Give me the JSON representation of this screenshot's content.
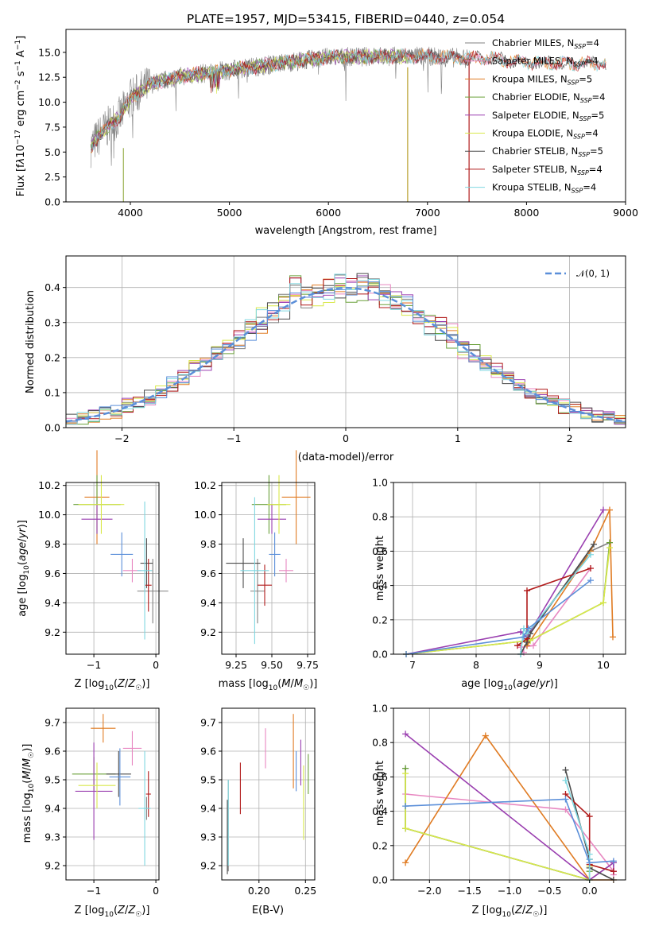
{
  "figure": {
    "title": "PLATE=1957, MJD=53415, FIBERID=0440, z=0.054",
    "colors": {
      "Chabrier MILES": "#808080",
      "Salpeter MILES": "#e887c1",
      "Kroupa MILES": "#e07b22",
      "Chabrier ELODIE": "#6aa039",
      "Salpeter ELODIE": "#9a3fb0",
      "Kroupa ELODIE": "#d8e84a",
      "Chabrier STELIB": "#4a4a4a",
      "Salpeter STELIB": "#b11b1b",
      "Kroupa STELIB": "#7fd7e0",
      "Normal": "#5b8fd9"
    }
  },
  "chart_data": [
    {
      "id": "spectrum",
      "type": "line",
      "xlabel": "wavelength [Angstrom, rest frame]",
      "ylabel": "Flux [f_λ 10^-17 erg cm^-2 s^-1 A^-1]",
      "xlim": [
        3350,
        9000
      ],
      "ylim": [
        0,
        17.3
      ],
      "xticks": [
        "4000",
        "5000",
        "6000",
        "7000",
        "8000",
        "9000"
      ],
      "yticks": [
        "0.0",
        "2.5",
        "5.0",
        "7.5",
        "10.0",
        "12.5",
        "15.0"
      ],
      "legend_loc": "upper right",
      "legend": [
        {
          "name": "Chabrier MILES",
          "nssp": "4"
        },
        {
          "name": "Salpeter MILES",
          "nssp": "4"
        },
        {
          "name": "Kroupa MILES",
          "nssp": "5"
        },
        {
          "name": "Chabrier ELODIE",
          "nssp": "4"
        },
        {
          "name": "Salpeter ELODIE",
          "nssp": "5"
        },
        {
          "name": "Kroupa ELODIE",
          "nssp": "4"
        },
        {
          "name": "Chabrier STELIB",
          "nssp": "5"
        },
        {
          "name": "Salpeter STELIB",
          "nssp": "4"
        },
        {
          "name": "Kroupa STELIB",
          "nssp": "4"
        }
      ],
      "continuum": [
        [
          3600,
          5.5
        ],
        [
          3700,
          6.8
        ],
        [
          3800,
          7.8
        ],
        [
          3900,
          8.6
        ],
        [
          4000,
          10.4
        ],
        [
          4200,
          11.8
        ],
        [
          4500,
          12.6
        ],
        [
          5000,
          13.2
        ],
        [
          5500,
          13.9
        ],
        [
          6000,
          14.5
        ],
        [
          6500,
          14.6
        ],
        [
          7000,
          14.6
        ],
        [
          7400,
          14.4
        ],
        [
          7600,
          14.4
        ],
        [
          8000,
          14.0
        ],
        [
          8500,
          13.9
        ],
        [
          8800,
          13.9
        ]
      ],
      "data_range": [
        3600,
        7420
      ],
      "model_range": [
        3600,
        8800
      ]
    },
    {
      "id": "residual_hist",
      "type": "line",
      "xlabel": "(data-model)/error",
      "ylabel": "Normed distribution",
      "xlim": [
        -2.5,
        2.5
      ],
      "ylim": [
        0,
        0.49
      ],
      "xticks": [
        "-2",
        "-1",
        "0",
        "1",
        "2"
      ],
      "yticks": [
        "0.0",
        "0.1",
        "0.2",
        "0.3",
        "0.4"
      ],
      "legend_loc": "upper right",
      "normal_label": "𝒩(0, 1)",
      "normal": {
        "mu": 0,
        "sigma": 1
      },
      "bin_width": 0.1,
      "grid": true
    },
    {
      "id": "age_vs_Z",
      "type": "scatter",
      "xlabel": "Z [log10(Z/Z☉)]",
      "ylabel": "age [log10(age/yr)]",
      "xlim": [
        -1.45,
        0.05
      ],
      "ylim": [
        9.05,
        10.22
      ],
      "xticks": [
        -1,
        0
      ],
      "yticks": [
        "9.2",
        "9.4",
        "9.6",
        "9.8",
        "10.0",
        "10.2"
      ],
      "grid": true,
      "points": [
        {
          "series": "Chabrier MILES",
          "x": -0.05,
          "xerr": 0.25,
          "y": 9.48,
          "yerr": 0.22
        },
        {
          "series": "Salpeter MILES",
          "x": -0.38,
          "xerr": 0.15,
          "y": 9.62,
          "yerr": 0.08
        },
        {
          "series": "Kroupa MILES",
          "x": -0.95,
          "xerr": 0.2,
          "y": 10.12,
          "yerr": 0.32
        },
        {
          "series": "Chabrier ELODIE",
          "x": -0.95,
          "xerr": 0.38,
          "y": 10.07,
          "yerr": 0.2
        },
        {
          "series": "Salpeter ELODIE",
          "x": -0.95,
          "xerr": 0.25,
          "y": 9.97,
          "yerr": 0.1
        },
        {
          "series": "Kroupa ELODIE",
          "x": -0.88,
          "xerr": 0.37,
          "y": 10.07,
          "yerr": 0.2
        },
        {
          "series": "Chabrier STELIB",
          "x": -0.15,
          "xerr": 0.1,
          "y": 9.67,
          "yerr": 0.17
        },
        {
          "series": "Salpeter STELIB",
          "x": -0.12,
          "xerr": 0.05,
          "y": 9.52,
          "yerr": 0.18
        },
        {
          "series": "Kroupa STELIB",
          "x": -0.18,
          "xerr": 0.12,
          "y": 9.62,
          "yerr": 0.47
        },
        {
          "series": "Normal",
          "x": -0.55,
          "xerr": 0.18,
          "y": 9.73,
          "yerr": 0.15
        }
      ]
    },
    {
      "id": "age_vs_mass",
      "type": "scatter",
      "xlabel": "mass [log10(M/M☉)]",
      "ylabel": "",
      "xlim": [
        9.15,
        9.8
      ],
      "ylim": [
        9.05,
        10.22
      ],
      "xticks": [
        "9.25",
        "9.50",
        "9.75"
      ],
      "yticks": [
        "9.2",
        "9.4",
        "9.6",
        "9.8",
        "10.0",
        "10.2"
      ],
      "grid": true,
      "points": [
        {
          "series": "Chabrier MILES",
          "x": 9.4,
          "xerr": 0.05,
          "y": 9.48,
          "yerr": 0.22
        },
        {
          "series": "Salpeter MILES",
          "x": 9.6,
          "xerr": 0.05,
          "y": 9.62,
          "yerr": 0.08
        },
        {
          "series": "Kroupa MILES",
          "x": 9.67,
          "xerr": 0.1,
          "y": 10.12,
          "yerr": 0.32
        },
        {
          "series": "Chabrier ELODIE",
          "x": 9.48,
          "xerr": 0.12,
          "y": 10.07,
          "yerr": 0.2
        },
        {
          "series": "Salpeter ELODIE",
          "x": 9.5,
          "xerr": 0.1,
          "y": 9.97,
          "yerr": 0.1
        },
        {
          "series": "Kroupa ELODIE",
          "x": 9.55,
          "xerr": 0.08,
          "y": 10.07,
          "yerr": 0.2
        },
        {
          "series": "Chabrier STELIB",
          "x": 9.3,
          "xerr": 0.12,
          "y": 9.67,
          "yerr": 0.17
        },
        {
          "series": "Salpeter STELIB",
          "x": 9.45,
          "xerr": 0.05,
          "y": 9.52,
          "yerr": 0.14
        },
        {
          "series": "Kroupa STELIB",
          "x": 9.38,
          "xerr": 0.1,
          "y": 9.62,
          "yerr": 0.5
        },
        {
          "series": "Normal",
          "x": 9.52,
          "xerr": 0.04,
          "y": 9.73,
          "yerr": 0.15
        }
      ]
    },
    {
      "id": "weight_vs_age",
      "type": "line",
      "xlabel": "age [log10(age/yr)]",
      "ylabel": "mass weight",
      "xlim": [
        6.7,
        10.35
      ],
      "ylim": [
        0,
        1
      ],
      "xticks": [
        "7",
        "8",
        "9",
        "10"
      ],
      "yticks": [
        "0.0",
        "0.2",
        "0.4",
        "0.6",
        "0.8",
        "1.0"
      ],
      "grid": true,
      "series": [
        {
          "name": "Chabrier MILES",
          "points": [
            [
              8.8,
              0.05
            ],
            [
              8.82,
              0.12
            ],
            [
              9.8,
              0.6
            ],
            [
              10.1,
              0.65
            ]
          ]
        },
        {
          "name": "Salpeter MILES",
          "points": [
            [
              8.75,
              0.01
            ],
            [
              8.7,
              0.04
            ],
            [
              8.9,
              0.05
            ],
            [
              9.8,
              0.5
            ]
          ]
        },
        {
          "name": "Kroupa MILES",
          "points": [
            [
              8.8,
              0.05
            ],
            [
              9.8,
              0.6
            ],
            [
              10.1,
              0.84
            ],
            [
              10.15,
              0.1
            ]
          ]
        },
        {
          "name": "Chabrier ELODIE",
          "points": [
            [
              6.9,
              0.0
            ],
            [
              8.85,
              0.08
            ],
            [
              10.0,
              0.3
            ],
            [
              10.1,
              0.65
            ]
          ]
        },
        {
          "name": "Salpeter ELODIE",
          "points": [
            [
              6.9,
              0.0
            ],
            [
              8.7,
              0.13
            ],
            [
              8.8,
              0.1
            ],
            [
              10.0,
              0.84
            ]
          ]
        },
        {
          "name": "Kroupa ELODIE",
          "points": [
            [
              6.9,
              0.0
            ],
            [
              8.85,
              0.08
            ],
            [
              10.0,
              0.3
            ],
            [
              10.1,
              0.62
            ]
          ]
        },
        {
          "name": "Chabrier STELIB",
          "points": [
            [
              8.7,
              0.0
            ],
            [
              8.8,
              0.07
            ],
            [
              8.85,
              0.12
            ],
            [
              9.85,
              0.64
            ]
          ]
        },
        {
          "name": "Salpeter STELIB",
          "points": [
            [
              8.65,
              0.05
            ],
            [
              8.8,
              0.09
            ],
            [
              8.8,
              0.37
            ],
            [
              9.8,
              0.5
            ]
          ]
        },
        {
          "name": "Kroupa STELIB",
          "points": [
            [
              8.7,
              0.0
            ],
            [
              8.75,
              0.15
            ],
            [
              8.8,
              0.12
            ],
            [
              9.8,
              0.58
            ]
          ]
        },
        {
          "name": "Normal",
          "points": [
            [
              6.9,
              0.0
            ],
            [
              8.75,
              0.1
            ],
            [
              8.82,
              0.15
            ],
            [
              9.8,
              0.43
            ]
          ]
        }
      ]
    },
    {
      "id": "mass_vs_Z",
      "type": "scatter",
      "xlabel": "Z [log10(Z/Z☉)]",
      "ylabel": "mass [log10(M/M☉)]",
      "xlim": [
        -1.45,
        0.05
      ],
      "ylim": [
        9.15,
        9.75
      ],
      "xticks": [
        -1,
        0
      ],
      "yticks": [
        "9.2",
        "9.3",
        "9.4",
        "9.5",
        "9.6",
        "9.7"
      ],
      "grid": true,
      "points": [
        {
          "series": "Chabrier MILES",
          "x": -0.15,
          "xerr": 0.05,
          "y": 9.4,
          "yerr": 0.04
        },
        {
          "series": "Salpeter MILES",
          "x": -0.38,
          "xerr": 0.15,
          "y": 9.61,
          "yerr": 0.06
        },
        {
          "series": "Kroupa MILES",
          "x": -0.85,
          "xerr": 0.2,
          "y": 9.68,
          "yerr": 0.05
        },
        {
          "series": "Chabrier ELODIE",
          "x": -1.0,
          "xerr": 0.35,
          "y": 9.52,
          "yerr": 0.06
        },
        {
          "series": "Salpeter ELODIE",
          "x": -1.0,
          "xerr": 0.3,
          "y": 9.46,
          "yerr": 0.17
        },
        {
          "series": "Kroupa ELODIE",
          "x": -0.95,
          "xerr": 0.3,
          "y": 9.48,
          "yerr": 0.08
        },
        {
          "series": "Chabrier STELIB",
          "x": -0.6,
          "xerr": 0.2,
          "y": 9.52,
          "yerr": 0.08
        },
        {
          "series": "Salpeter STELIB",
          "x": -0.12,
          "xerr": 0.04,
          "y": 9.45,
          "yerr": 0.08
        },
        {
          "series": "Kroupa STELIB",
          "x": -0.18,
          "xerr": 0.1,
          "y": 9.4,
          "yerr": 0.2
        },
        {
          "series": "Normal",
          "x": -0.58,
          "xerr": 0.17,
          "y": 9.51,
          "yerr": 0.1
        }
      ]
    },
    {
      "id": "mass_vs_ebv",
      "type": "scatter",
      "xlabel": "E(B-V)",
      "ylabel": "",
      "xlim": [
        0.16,
        0.26
      ],
      "ylim": [
        9.15,
        9.75
      ],
      "xticks": [
        "0.20",
        "0.25"
      ],
      "yticks": [
        "9.2",
        "9.3",
        "9.4",
        "9.5",
        "9.6",
        "9.7"
      ],
      "grid": true,
      "points": [
        {
          "series": "Chabrier MILES",
          "x": 0.167,
          "y": 9.34,
          "yerr": 0.16
        },
        {
          "series": "Salpeter MILES",
          "x": 0.207,
          "y": 9.61,
          "yerr": 0.07
        },
        {
          "series": "Kroupa MILES",
          "x": 0.237,
          "y": 9.6,
          "yerr": 0.13
        },
        {
          "series": "Chabrier ELODIE",
          "x": 0.253,
          "y": 9.52,
          "yerr": 0.07
        },
        {
          "series": "Salpeter ELODIE",
          "x": 0.245,
          "y": 9.56,
          "yerr": 0.08
        },
        {
          "series": "Kroupa ELODIE",
          "x": 0.248,
          "y": 9.42,
          "yerr": 0.13
        },
        {
          "series": "Chabrier STELIB",
          "x": 0.166,
          "y": 9.3,
          "yerr": 0.13
        },
        {
          "series": "Salpeter STELIB",
          "x": 0.18,
          "y": 9.47,
          "yerr": 0.09
        },
        {
          "series": "Kroupa STELIB",
          "x": 0.167,
          "y": 9.35,
          "yerr": 0.15
        },
        {
          "series": "Normal",
          "x": 0.24,
          "y": 9.53,
          "yerr": 0.07
        }
      ]
    },
    {
      "id": "weight_vs_Z",
      "type": "line",
      "xlabel": "Z [log10(Z/Z☉)]",
      "ylabel": "mass weight",
      "xlim": [
        -2.45,
        0.45
      ],
      "ylim": [
        0,
        1
      ],
      "xticks": [
        "-2.0",
        "-1.5",
        "-1.0",
        "-0.5",
        "0.0"
      ],
      "yticks": [
        "0.0",
        "0.2",
        "0.4",
        "0.6",
        "0.8",
        "1.0"
      ],
      "grid": true,
      "series": [
        {
          "name": "Chabrier MILES",
          "points": [
            [
              -2.3,
              0.65
            ],
            [
              -2.3,
              0.3
            ],
            [
              0.0,
              0.0
            ],
            [
              0.3,
              0.1
            ]
          ]
        },
        {
          "name": "Salpeter MILES",
          "points": [
            [
              -2.3,
              0.5
            ],
            [
              -0.3,
              0.41
            ],
            [
              0.3,
              0.05
            ],
            [
              0.3,
              0.03
            ]
          ]
        },
        {
          "name": "Kroupa MILES",
          "points": [
            [
              -2.3,
              0.1
            ],
            [
              -1.3,
              0.84
            ],
            [
              0.0,
              0.0
            ],
            [
              0.3,
              0.0
            ]
          ]
        },
        {
          "name": "Chabrier ELODIE",
          "points": [
            [
              -2.3,
              0.65
            ],
            [
              -2.3,
              0.3
            ],
            [
              0.0,
              0.0
            ],
            [
              0.0,
              0.05
            ]
          ]
        },
        {
          "name": "Salpeter ELODIE",
          "points": [
            [
              -2.3,
              0.85
            ],
            [
              0.0,
              0.0
            ],
            [
              0.3,
              0.1
            ],
            [
              0.3,
              0.05
            ]
          ]
        },
        {
          "name": "Kroupa ELODIE",
          "points": [
            [
              -2.3,
              0.62
            ],
            [
              -2.3,
              0.3
            ],
            [
              0.0,
              0.0
            ],
            [
              0.0,
              0.08
            ]
          ]
        },
        {
          "name": "Chabrier STELIB",
          "points": [
            [
              -0.3,
              0.64
            ],
            [
              0.0,
              0.12
            ],
            [
              0.0,
              0.07
            ],
            [
              0.3,
              0.0
            ]
          ]
        },
        {
          "name": "Salpeter STELIB",
          "points": [
            [
              -0.3,
              0.5
            ],
            [
              0.0,
              0.37
            ],
            [
              0.0,
              0.09
            ],
            [
              0.3,
              0.05
            ]
          ]
        },
        {
          "name": "Kroupa STELIB",
          "points": [
            [
              -0.3,
              0.58
            ],
            [
              0.0,
              0.15
            ],
            [
              0.0,
              0.12
            ],
            [
              0.0,
              0.0
            ]
          ]
        },
        {
          "name": "Normal",
          "points": [
            [
              -2.3,
              0.43
            ],
            [
              -0.3,
              0.47
            ],
            [
              0.0,
              0.1
            ],
            [
              0.3,
              0.11
            ]
          ]
        }
      ]
    }
  ]
}
